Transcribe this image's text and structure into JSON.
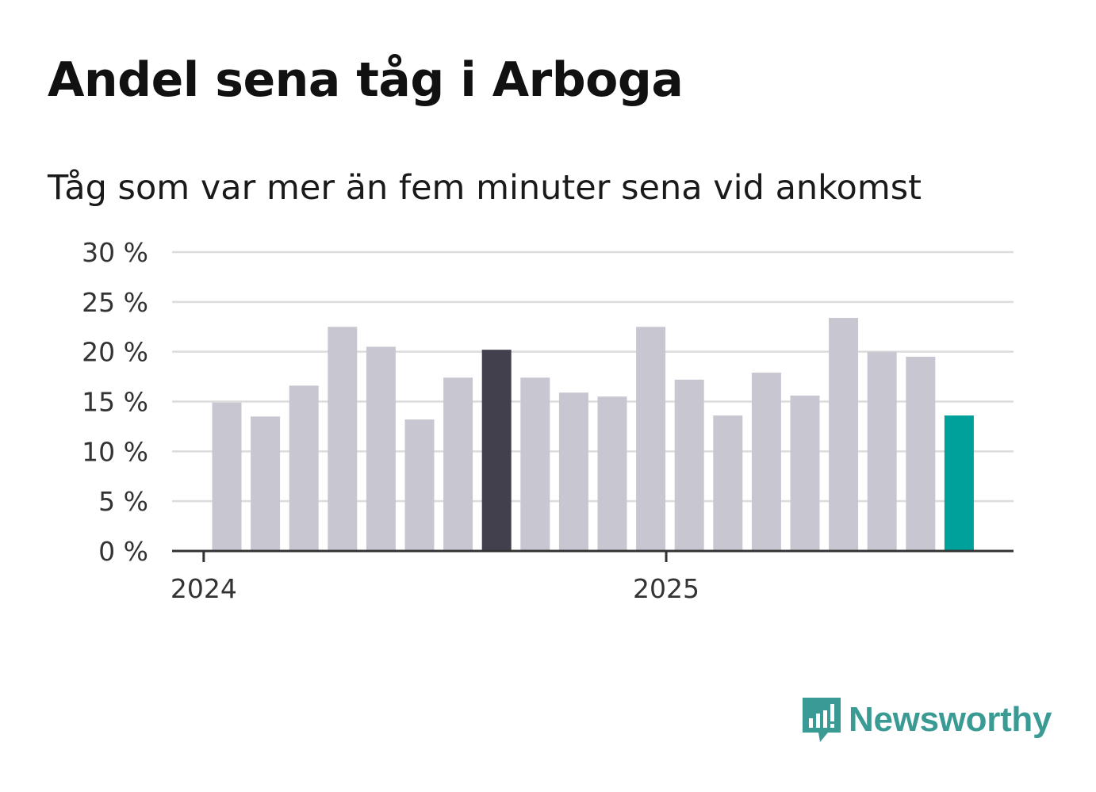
{
  "title": "Andel sena tåg i Arboga",
  "subtitle": "Tåg som var mer än fem minuter sena vid ankomst",
  "brand": {
    "name": "Newsworthy",
    "color": "#3a9b95",
    "icon": "newsworthy-logo-icon"
  },
  "chart_data": {
    "type": "bar",
    "title": "Andel sena tåg i Arboga",
    "subtitle": "Tåg som var mer än fem minuter sena vid ankomst",
    "xlabel": "",
    "ylabel": "",
    "ylim": [
      0,
      30
    ],
    "yticks": [
      {
        "value": 0,
        "label": "0 %"
      },
      {
        "value": 5,
        "label": "5 %"
      },
      {
        "value": 10,
        "label": "10 %"
      },
      {
        "value": 15,
        "label": "15 %"
      },
      {
        "value": 20,
        "label": "20 %"
      },
      {
        "value": 25,
        "label": "25 %"
      },
      {
        "value": 30,
        "label": "30 %"
      }
    ],
    "xticks": [
      {
        "index": -0.6,
        "label": "2024"
      },
      {
        "index": 11.4,
        "label": "2025"
      }
    ],
    "grid": true,
    "values": [
      14.9,
      13.5,
      16.6,
      22.5,
      20.5,
      13.2,
      17.4,
      20.2,
      17.4,
      15.9,
      15.5,
      22.5,
      17.2,
      13.6,
      17.9,
      15.6,
      23.4,
      20.0,
      19.5,
      13.6
    ],
    "bar_colors": {
      "default": "#c8c7d1",
      "highlight": "#42404c",
      "latest": "#00a19a"
    },
    "highlight_index": 7,
    "latest_index": 19
  }
}
